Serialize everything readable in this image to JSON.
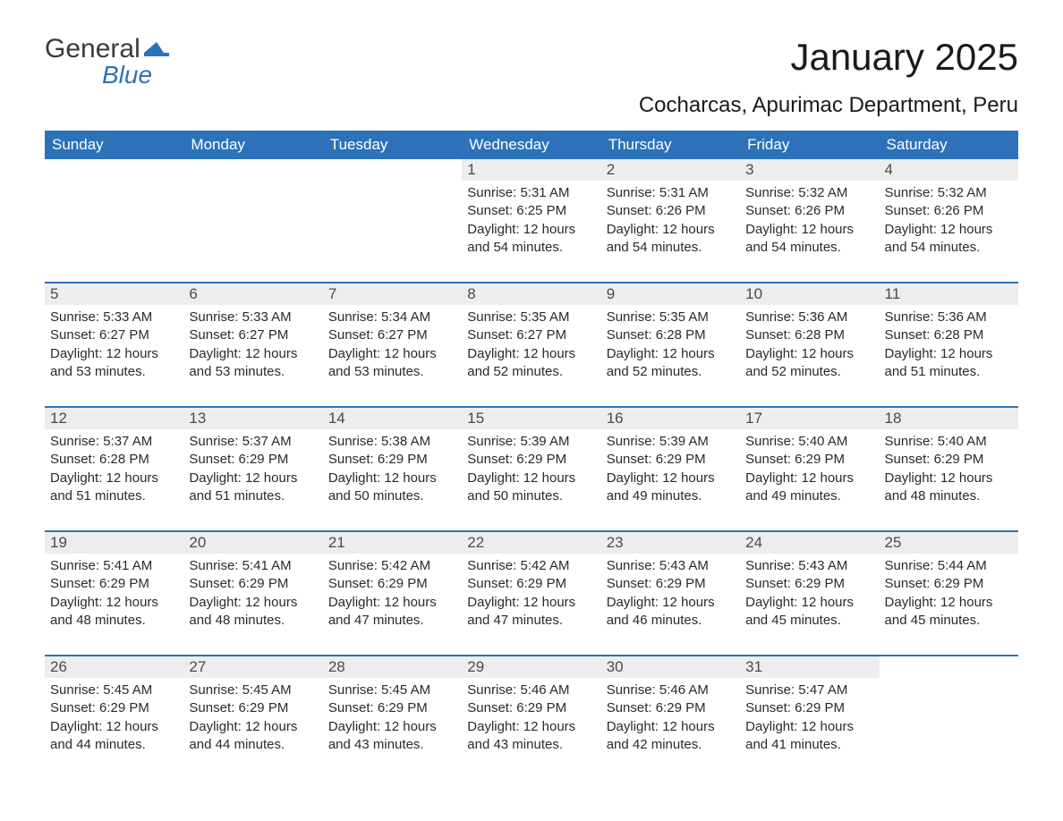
{
  "logo": {
    "word1": "General",
    "word2": "Blue"
  },
  "title": "January 2025",
  "subtitle": "Cocharcas, Apurimac Department, Peru",
  "colors": {
    "header_bg": "#2d72b8",
    "header_text": "#ffffff",
    "daynum_bg": "#ededed",
    "text": "#2a2a2a",
    "logo_gray": "#3a3a3a",
    "logo_blue": "#2d72b8"
  },
  "day_headers": [
    "Sunday",
    "Monday",
    "Tuesday",
    "Wednesday",
    "Thursday",
    "Friday",
    "Saturday"
  ],
  "weeks": [
    [
      null,
      null,
      null,
      {
        "n": "1",
        "sunrise": "Sunrise: 5:31 AM",
        "sunset": "Sunset: 6:25 PM",
        "day1": "Daylight: 12 hours",
        "day2": "and 54 minutes."
      },
      {
        "n": "2",
        "sunrise": "Sunrise: 5:31 AM",
        "sunset": "Sunset: 6:26 PM",
        "day1": "Daylight: 12 hours",
        "day2": "and 54 minutes."
      },
      {
        "n": "3",
        "sunrise": "Sunrise: 5:32 AM",
        "sunset": "Sunset: 6:26 PM",
        "day1": "Daylight: 12 hours",
        "day2": "and 54 minutes."
      },
      {
        "n": "4",
        "sunrise": "Sunrise: 5:32 AM",
        "sunset": "Sunset: 6:26 PM",
        "day1": "Daylight: 12 hours",
        "day2": "and 54 minutes."
      }
    ],
    [
      {
        "n": "5",
        "sunrise": "Sunrise: 5:33 AM",
        "sunset": "Sunset: 6:27 PM",
        "day1": "Daylight: 12 hours",
        "day2": "and 53 minutes."
      },
      {
        "n": "6",
        "sunrise": "Sunrise: 5:33 AM",
        "sunset": "Sunset: 6:27 PM",
        "day1": "Daylight: 12 hours",
        "day2": "and 53 minutes."
      },
      {
        "n": "7",
        "sunrise": "Sunrise: 5:34 AM",
        "sunset": "Sunset: 6:27 PM",
        "day1": "Daylight: 12 hours",
        "day2": "and 53 minutes."
      },
      {
        "n": "8",
        "sunrise": "Sunrise: 5:35 AM",
        "sunset": "Sunset: 6:27 PM",
        "day1": "Daylight: 12 hours",
        "day2": "and 52 minutes."
      },
      {
        "n": "9",
        "sunrise": "Sunrise: 5:35 AM",
        "sunset": "Sunset: 6:28 PM",
        "day1": "Daylight: 12 hours",
        "day2": "and 52 minutes."
      },
      {
        "n": "10",
        "sunrise": "Sunrise: 5:36 AM",
        "sunset": "Sunset: 6:28 PM",
        "day1": "Daylight: 12 hours",
        "day2": "and 52 minutes."
      },
      {
        "n": "11",
        "sunrise": "Sunrise: 5:36 AM",
        "sunset": "Sunset: 6:28 PM",
        "day1": "Daylight: 12 hours",
        "day2": "and 51 minutes."
      }
    ],
    [
      {
        "n": "12",
        "sunrise": "Sunrise: 5:37 AM",
        "sunset": "Sunset: 6:28 PM",
        "day1": "Daylight: 12 hours",
        "day2": "and 51 minutes."
      },
      {
        "n": "13",
        "sunrise": "Sunrise: 5:37 AM",
        "sunset": "Sunset: 6:29 PM",
        "day1": "Daylight: 12 hours",
        "day2": "and 51 minutes."
      },
      {
        "n": "14",
        "sunrise": "Sunrise: 5:38 AM",
        "sunset": "Sunset: 6:29 PM",
        "day1": "Daylight: 12 hours",
        "day2": "and 50 minutes."
      },
      {
        "n": "15",
        "sunrise": "Sunrise: 5:39 AM",
        "sunset": "Sunset: 6:29 PM",
        "day1": "Daylight: 12 hours",
        "day2": "and 50 minutes."
      },
      {
        "n": "16",
        "sunrise": "Sunrise: 5:39 AM",
        "sunset": "Sunset: 6:29 PM",
        "day1": "Daylight: 12 hours",
        "day2": "and 49 minutes."
      },
      {
        "n": "17",
        "sunrise": "Sunrise: 5:40 AM",
        "sunset": "Sunset: 6:29 PM",
        "day1": "Daylight: 12 hours",
        "day2": "and 49 minutes."
      },
      {
        "n": "18",
        "sunrise": "Sunrise: 5:40 AM",
        "sunset": "Sunset: 6:29 PM",
        "day1": "Daylight: 12 hours",
        "day2": "and 48 minutes."
      }
    ],
    [
      {
        "n": "19",
        "sunrise": "Sunrise: 5:41 AM",
        "sunset": "Sunset: 6:29 PM",
        "day1": "Daylight: 12 hours",
        "day2": "and 48 minutes."
      },
      {
        "n": "20",
        "sunrise": "Sunrise: 5:41 AM",
        "sunset": "Sunset: 6:29 PM",
        "day1": "Daylight: 12 hours",
        "day2": "and 48 minutes."
      },
      {
        "n": "21",
        "sunrise": "Sunrise: 5:42 AM",
        "sunset": "Sunset: 6:29 PM",
        "day1": "Daylight: 12 hours",
        "day2": "and 47 minutes."
      },
      {
        "n": "22",
        "sunrise": "Sunrise: 5:42 AM",
        "sunset": "Sunset: 6:29 PM",
        "day1": "Daylight: 12 hours",
        "day2": "and 47 minutes."
      },
      {
        "n": "23",
        "sunrise": "Sunrise: 5:43 AM",
        "sunset": "Sunset: 6:29 PM",
        "day1": "Daylight: 12 hours",
        "day2": "and 46 minutes."
      },
      {
        "n": "24",
        "sunrise": "Sunrise: 5:43 AM",
        "sunset": "Sunset: 6:29 PM",
        "day1": "Daylight: 12 hours",
        "day2": "and 45 minutes."
      },
      {
        "n": "25",
        "sunrise": "Sunrise: 5:44 AM",
        "sunset": "Sunset: 6:29 PM",
        "day1": "Daylight: 12 hours",
        "day2": "and 45 minutes."
      }
    ],
    [
      {
        "n": "26",
        "sunrise": "Sunrise: 5:45 AM",
        "sunset": "Sunset: 6:29 PM",
        "day1": "Daylight: 12 hours",
        "day2": "and 44 minutes."
      },
      {
        "n": "27",
        "sunrise": "Sunrise: 5:45 AM",
        "sunset": "Sunset: 6:29 PM",
        "day1": "Daylight: 12 hours",
        "day2": "and 44 minutes."
      },
      {
        "n": "28",
        "sunrise": "Sunrise: 5:45 AM",
        "sunset": "Sunset: 6:29 PM",
        "day1": "Daylight: 12 hours",
        "day2": "and 43 minutes."
      },
      {
        "n": "29",
        "sunrise": "Sunrise: 5:46 AM",
        "sunset": "Sunset: 6:29 PM",
        "day1": "Daylight: 12 hours",
        "day2": "and 43 minutes."
      },
      {
        "n": "30",
        "sunrise": "Sunrise: 5:46 AM",
        "sunset": "Sunset: 6:29 PM",
        "day1": "Daylight: 12 hours",
        "day2": "and 42 minutes."
      },
      {
        "n": "31",
        "sunrise": "Sunrise: 5:47 AM",
        "sunset": "Sunset: 6:29 PM",
        "day1": "Daylight: 12 hours",
        "day2": "and 41 minutes."
      },
      null
    ]
  ]
}
